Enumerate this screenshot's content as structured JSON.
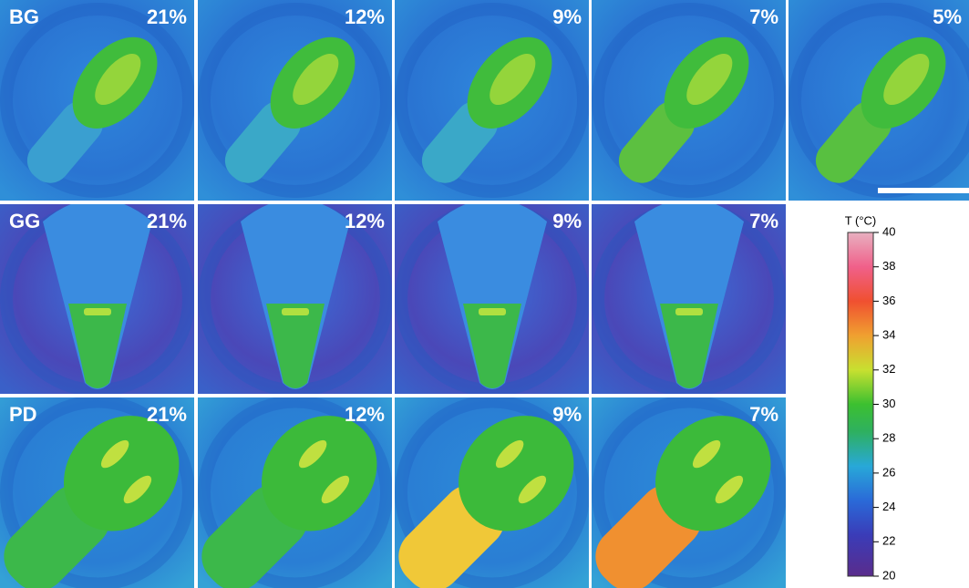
{
  "rows": [
    {
      "label": "BG",
      "panels": [
        "21%",
        "12%",
        "9%",
        "7%",
        "5%"
      ]
    },
    {
      "label": "GG",
      "panels": [
        "21%",
        "12%",
        "9%",
        "7%"
      ]
    },
    {
      "label": "PD",
      "panels": [
        "21%",
        "12%",
        "9%",
        "7%"
      ]
    }
  ],
  "colorbar": {
    "label": "T (°C)",
    "lim": [
      20,
      40
    ],
    "ticks": [
      20,
      22,
      24,
      26,
      28,
      30,
      32,
      34,
      36,
      38,
      40
    ]
  }
}
